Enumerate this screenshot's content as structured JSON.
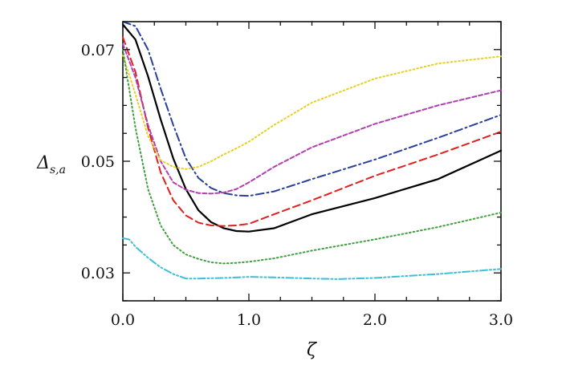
{
  "chart_data": {
    "type": "line",
    "xlabel": "ζ",
    "ylabel": {
      "main": "Δ",
      "sub": "s,a"
    },
    "xlim": [
      0,
      3
    ],
    "ylim": [
      0.025,
      0.075
    ],
    "xticks": [
      {
        "value": 0,
        "label": "0.0"
      },
      {
        "value": 1,
        "label": "1.0"
      },
      {
        "value": 2,
        "label": "2.0"
      },
      {
        "value": 3,
        "label": "3.0"
      }
    ],
    "yticks": [
      {
        "value": 0.03,
        "label": "0.03"
      },
      {
        "value": 0.05,
        "label": "0.05"
      },
      {
        "value": 0.07,
        "label": "0.07"
      }
    ],
    "grid": false,
    "legend": "none",
    "series": [
      {
        "color": "#000000",
        "dash": "solid",
        "x": [
          0,
          0.1,
          0.2,
          0.3,
          0.4,
          0.5,
          0.6,
          0.7,
          0.8,
          0.9,
          1.0,
          1.2,
          1.5,
          2.0,
          2.5,
          3.0
        ],
        "y": [
          0.0745,
          0.0718,
          0.0652,
          0.0575,
          0.0505,
          0.045,
          0.0412,
          0.0391,
          0.038,
          0.0375,
          0.0374,
          0.038,
          0.0405,
          0.0434,
          0.0468,
          0.0519
        ]
      },
      {
        "color": "#e02020",
        "dash": "dash",
        "x": [
          0,
          0.1,
          0.2,
          0.3,
          0.4,
          0.5,
          0.6,
          0.7,
          0.8,
          0.9,
          1.0,
          1.2,
          1.5,
          2.0,
          2.5,
          3.0
        ],
        "y": [
          0.0722,
          0.066,
          0.056,
          0.048,
          0.043,
          0.0403,
          0.039,
          0.0385,
          0.0384,
          0.0385,
          0.0388,
          0.0405,
          0.043,
          0.0474,
          0.0512,
          0.0553
        ]
      },
      {
        "color": "#2a3f9a",
        "dash": "dashdot",
        "x": [
          0,
          0.1,
          0.2,
          0.3,
          0.4,
          0.5,
          0.6,
          0.7,
          0.8,
          0.9,
          1.0,
          1.2,
          1.5,
          2.0,
          2.5,
          3.0
        ],
        "y": [
          0.075,
          0.0742,
          0.07,
          0.063,
          0.0565,
          0.0505,
          0.047,
          0.0452,
          0.0443,
          0.0439,
          0.0438,
          0.0446,
          0.0468,
          0.0503,
          0.0542,
          0.0583
        ]
      },
      {
        "color": "#b040b0",
        "dash": "shortdash",
        "x": [
          0,
          0.1,
          0.2,
          0.3,
          0.4,
          0.5,
          0.6,
          0.7,
          0.8,
          0.9,
          1.0,
          1.2,
          1.5,
          2.0,
          2.5,
          3.0
        ],
        "y": [
          0.071,
          0.065,
          0.0565,
          0.05,
          0.0462,
          0.0449,
          0.0443,
          0.0442,
          0.0444,
          0.045,
          0.0462,
          0.049,
          0.0525,
          0.0567,
          0.06,
          0.0627
        ]
      },
      {
        "color": "#e8d020",
        "dash": "dot",
        "x": [
          0,
          0.1,
          0.2,
          0.3,
          0.4,
          0.5,
          0.6,
          0.7,
          0.8,
          0.9,
          1.0,
          1.2,
          1.5,
          2.0,
          2.5,
          3.0
        ],
        "y": [
          0.069,
          0.062,
          0.0545,
          0.0502,
          0.049,
          0.0486,
          0.049,
          0.05,
          0.0512,
          0.0523,
          0.0535,
          0.0565,
          0.0605,
          0.0648,
          0.0675,
          0.0688
        ]
      },
      {
        "color": "#40a040",
        "dash": "dot",
        "x": [
          0,
          0.1,
          0.2,
          0.3,
          0.4,
          0.5,
          0.6,
          0.7,
          0.8,
          0.9,
          1.0,
          1.2,
          1.5,
          2.0,
          2.5,
          3.0
        ],
        "y": [
          0.07,
          0.056,
          0.045,
          0.0385,
          0.035,
          0.0333,
          0.0325,
          0.0319,
          0.0317,
          0.0318,
          0.032,
          0.0326,
          0.034,
          0.036,
          0.0382,
          0.0408
        ]
      },
      {
        "color": "#3cc0d8",
        "dash": "dashdotdot",
        "x": [
          0,
          0.05,
          0.1,
          0.2,
          0.3,
          0.4,
          0.5,
          0.6,
          0.8,
          1.0,
          1.2,
          1.5,
          1.7,
          2.0,
          2.5,
          3.0
        ],
        "y": [
          0.0362,
          0.036,
          0.0347,
          0.0327,
          0.031,
          0.0298,
          0.029,
          0.029,
          0.0291,
          0.0293,
          0.0292,
          0.029,
          0.0289,
          0.0291,
          0.0298,
          0.0307
        ]
      }
    ]
  }
}
